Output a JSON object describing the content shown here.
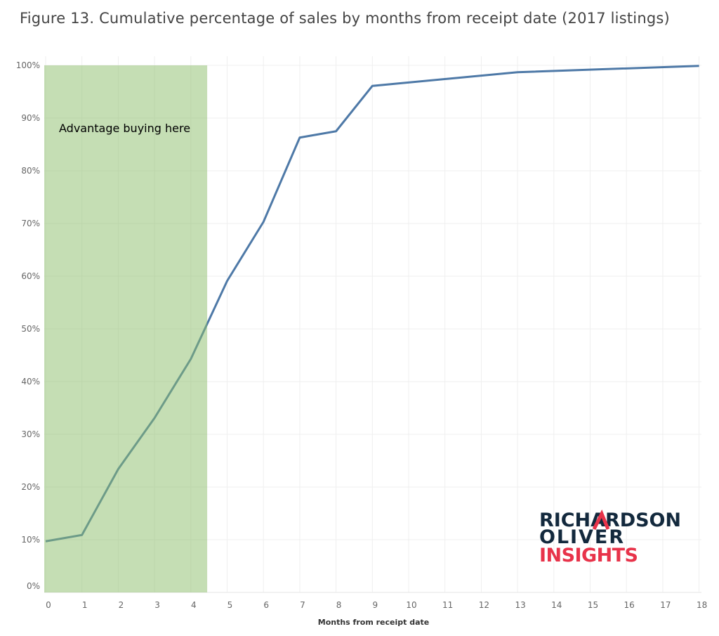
{
  "chart_data": {
    "type": "line",
    "title": "Figure 13. Cumulative percentage of sales by months from receipt date (2017 listings)",
    "xlabel": "Months from receipt date",
    "ylabel": "",
    "x": [
      0,
      1,
      2,
      3,
      4,
      5,
      6,
      7,
      8,
      9,
      13,
      18
    ],
    "values": [
      9.7,
      10.9,
      23.4,
      33.1,
      44.3,
      59.1,
      70.3,
      86.3,
      87.5,
      96.1,
      98.7,
      99.9
    ],
    "xticks": [
      "0",
      "1",
      "2",
      "3",
      "4",
      "5",
      "6",
      "7",
      "8",
      "9",
      "10",
      "11",
      "12",
      "13",
      "14",
      "15",
      "16",
      "17",
      "18"
    ],
    "yticks": [
      "0%",
      "10%",
      "20%",
      "30%",
      "40%",
      "50%",
      "60%",
      "70%",
      "80%",
      "90%",
      "100%"
    ],
    "xlim": [
      0,
      18
    ],
    "ylim": [
      0,
      100
    ],
    "grid": true,
    "line_color": "#4e79a7",
    "highlight": {
      "from": 0,
      "to": 4.45,
      "label": "Advantage buying here",
      "color": "#8bbd69"
    }
  },
  "logo": {
    "line1": "RICHARDSON",
    "line2": "OLIVER",
    "line3": "INSIGHTS",
    "dark": "#13293d",
    "accent": "#e8334a"
  }
}
